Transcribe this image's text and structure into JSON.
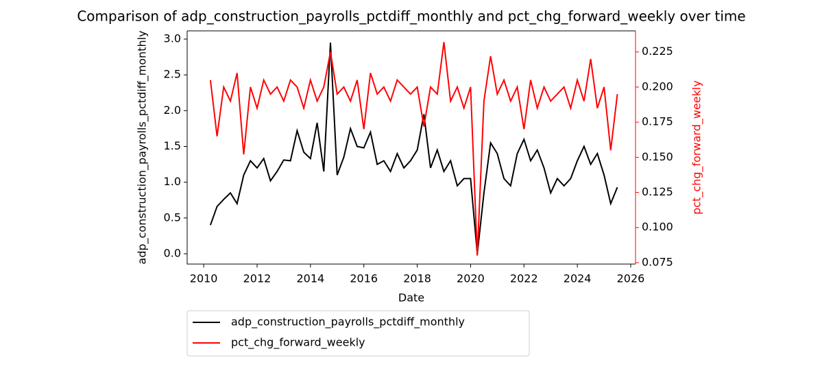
{
  "chart_data": {
    "type": "line",
    "title": "Comparison of adp_construction_payrolls_pctdiff_monthly and pct_chg_forward_weekly over time",
    "x_label": "Date",
    "y_label": "adp_construction_payrolls_pctdiff_monthly",
    "y2_label": "pct_chg_forward_weekly",
    "x": [
      2010.25,
      2010.5,
      2010.75,
      2011,
      2011.25,
      2011.5,
      2011.75,
      2012,
      2012.25,
      2012.5,
      2012.75,
      2013,
      2013.25,
      2013.5,
      2013.75,
      2014,
      2014.25,
      2014.5,
      2014.75,
      2015,
      2015.25,
      2015.5,
      2015.75,
      2016,
      2016.25,
      2016.5,
      2016.75,
      2017,
      2017.25,
      2017.5,
      2017.75,
      2018,
      2018.25,
      2018.5,
      2018.75,
      2019,
      2019.25,
      2019.5,
      2019.75,
      2020,
      2020.25,
      2020.5,
      2020.75,
      2021,
      2021.25,
      2021.5,
      2021.75,
      2022,
      2022.25,
      2022.5,
      2022.75,
      2023,
      2023.25,
      2023.5,
      2023.75,
      2024,
      2024.25,
      2024.5,
      2024.75,
      2025,
      2025.25,
      2025.5
    ],
    "series": [
      {
        "name": "adp_construction_payrolls_pctdiff_monthly",
        "color": "#000000",
        "values": [
          0.4,
          0.66,
          0.76,
          0.85,
          0.7,
          1.1,
          1.3,
          1.2,
          1.33,
          1.02,
          1.15,
          1.31,
          1.3,
          1.72,
          1.42,
          1.33,
          1.83,
          1.15,
          2.95,
          1.1,
          1.35,
          1.75,
          1.5,
          1.48,
          1.7,
          1.25,
          1.3,
          1.15,
          1.4,
          1.2,
          1.3,
          1.45,
          1.95,
          1.2,
          1.45,
          1.15,
          1.3,
          0.95,
          1.05,
          1.05,
          0,
          0.85,
          1.55,
          1.4,
          1.05,
          0.95,
          1.4,
          1.6,
          1.3,
          1.45,
          1.2,
          0.85,
          1.05,
          0.95,
          1.05,
          1.3,
          1.5,
          1.25,
          1.4,
          1.1,
          0.7,
          0.93
        ]
      },
      {
        "name": "pct_chg_forward_weekly",
        "color": "#ff0000",
        "axis": "y2",
        "values": [
          0.205,
          0.165,
          0.2,
          0.19,
          0.21,
          0.152,
          0.2,
          0.185,
          0.205,
          0.195,
          0.2,
          0.19,
          0.205,
          0.2,
          0.185,
          0.205,
          0.19,
          0.2,
          0.225,
          0.195,
          0.2,
          0.19,
          0.205,
          0.17,
          0.21,
          0.195,
          0.2,
          0.19,
          0.205,
          0.2,
          0.195,
          0.2,
          0.172,
          0.2,
          0.195,
          0.232,
          0.19,
          0.2,
          0.185,
          0.2,
          0.08,
          0.19,
          0.222,
          0.195,
          0.205,
          0.19,
          0.2,
          0.17,
          0.205,
          0.185,
          0.2,
          0.19,
          0.195,
          0.2,
          0.185,
          0.205,
          0.19,
          0.22,
          0.185,
          0.2,
          0.155,
          0.195
        ]
      }
    ],
    "xlim": [
      2009.38,
      2026.18
    ],
    "xticks": [
      2010,
      2012,
      2014,
      2016,
      2018,
      2020,
      2022,
      2024,
      2026
    ],
    "ylim": [
      -0.144,
      3.115
    ],
    "yticks": [
      {
        "value": 0,
        "label": "0.0"
      },
      {
        "value": 0.5,
        "label": "0.5"
      },
      {
        "value": 1,
        "label": "1.0"
      },
      {
        "value": 1.5,
        "label": "1.5"
      },
      {
        "value": 2,
        "label": "2.0"
      },
      {
        "value": 2.5,
        "label": "2.5"
      },
      {
        "value": 3,
        "label": "3.0"
      }
    ],
    "y2lim": [
      0.074,
      0.24
    ],
    "y2ticks": [
      0.075,
      {
        "value": 0.1,
        "label": "0.100"
      },
      0.125,
      {
        "value": 0.15,
        "label": "0.150"
      },
      0.175,
      {
        "value": 0.2,
        "label": "0.200"
      },
      0.225
    ],
    "y2_color": "#ff0000"
  }
}
